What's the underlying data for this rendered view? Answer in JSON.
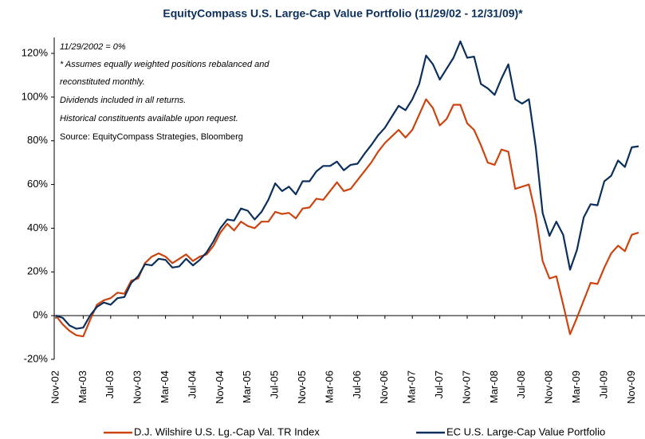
{
  "chart_data": {
    "type": "line",
    "title": "EquityCompass U.S. Large-Cap Value Portfolio (11/29/02 - 12/31/09)*",
    "annotations": [
      "11/29/2002 = 0%",
      "*  Assumes equally weighted positions rebalanced and",
      "reconstituted monthly.",
      "Dividends included in all returns.",
      "Historical constituents available upon request.",
      "Source: EquityCompass Strategies, Bloomberg"
    ],
    "categories": [
      "Nov-02",
      null,
      null,
      null,
      "Mar-03",
      null,
      null,
      null,
      "Jul-03",
      null,
      null,
      null,
      "Nov-03",
      null,
      null,
      null,
      "Mar-04",
      null,
      null,
      null,
      "Jul-04",
      null,
      null,
      null,
      "Nov-04",
      null,
      null,
      null,
      "Mar-05",
      null,
      null,
      null,
      "Jul-05",
      null,
      null,
      null,
      "Nov-05",
      null,
      null,
      null,
      "Mar-06",
      null,
      null,
      null,
      "Jul-06",
      null,
      null,
      null,
      "Nov-06",
      null,
      null,
      null,
      "Mar-07",
      null,
      null,
      null,
      "Jul-07",
      null,
      null,
      null,
      "Nov-07",
      null,
      null,
      null,
      "Mar-08",
      null,
      null,
      null,
      "Jul-08",
      null,
      null,
      null,
      "Nov-08",
      null,
      null,
      null,
      "Mar-09",
      null,
      null,
      null,
      "Jul-09",
      null,
      null,
      null,
      "Nov-09",
      null
    ],
    "series": [
      {
        "name": "D.J. Wilshire U.S. Lg.-Cap Val. TR Index",
        "color": "#cc4410",
        "values": [
          0,
          -4,
          -7,
          -9,
          -9.5,
          -2,
          5,
          7,
          8,
          10.5,
          10,
          16,
          17,
          24,
          27,
          28.5,
          27,
          24,
          26,
          28,
          25,
          27,
          28,
          32,
          38,
          42,
          39,
          43,
          41,
          40,
          43,
          43,
          47.5,
          46.5,
          47,
          44.5,
          49,
          49.5,
          53.5,
          53,
          57,
          61,
          57,
          58,
          62,
          66,
          70,
          75,
          79,
          82,
          85,
          81.5,
          85,
          92,
          99,
          95,
          87,
          90,
          96.5,
          96.5,
          88,
          85,
          78,
          70,
          69,
          76,
          75,
          58,
          59,
          60,
          46,
          25,
          17,
          18,
          5,
          -8.5,
          -1,
          7,
          15,
          14.5,
          22,
          28.5,
          32,
          29.5,
          37,
          38
        ]
      },
      {
        "name": "EC U.S. Large-Cap Value Portfolio",
        "color": "#0c2f5c",
        "values": [
          0,
          -1,
          -4.5,
          -6,
          -5.5,
          0,
          4,
          6,
          5,
          8,
          8.5,
          15,
          18,
          23.5,
          23,
          26,
          25.5,
          22,
          22.5,
          26,
          23,
          25.5,
          29,
          34,
          40,
          44,
          43.5,
          49,
          48,
          44,
          47.5,
          53,
          60.5,
          57,
          59,
          55.5,
          61.5,
          61.5,
          66,
          68.5,
          68.5,
          70.5,
          66.5,
          69,
          69.5,
          74,
          78,
          82.5,
          86,
          91,
          96,
          94,
          99,
          106,
          119,
          115,
          108,
          113,
          118,
          125.5,
          118,
          118.5,
          106,
          104,
          101,
          108.5,
          115,
          99,
          97,
          99,
          77,
          47,
          36.5,
          43,
          37,
          21,
          30,
          45,
          51,
          50.5,
          61.5,
          64,
          71,
          68,
          77,
          77.5
        ]
      }
    ],
    "ylim": [
      -20,
      120
    ],
    "yticks": [
      {
        "value": -20,
        "label": "-20%"
      },
      {
        "value": 0,
        "label": "0%"
      },
      {
        "value": 20,
        "label": "20%"
      },
      {
        "value": 40,
        "label": "40%"
      },
      {
        "value": 60,
        "label": "60%"
      },
      {
        "value": 80,
        "label": "80%"
      },
      {
        "value": 100,
        "label": "100%"
      },
      {
        "value": 120,
        "label": "120%"
      }
    ],
    "legend": "bottom"
  }
}
